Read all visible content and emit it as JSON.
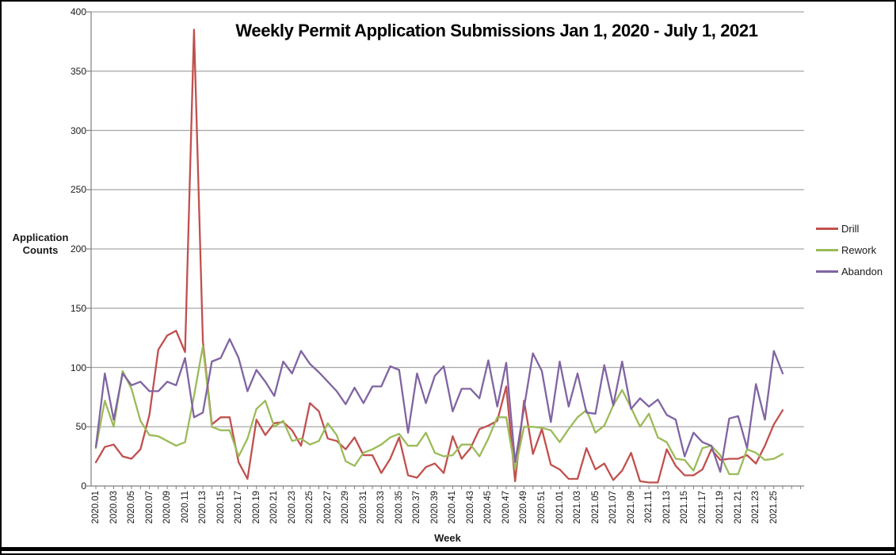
{
  "title": "Weekly Permit Application Submissions Jan 1, 2020 - July 1, 2021",
  "y_axis": {
    "label": "Application\nCounts",
    "tick_labels": [
      "0",
      "50",
      "100",
      "150",
      "200",
      "250",
      "300",
      "350",
      "400"
    ]
  },
  "x_axis": {
    "label": "Week"
  },
  "legend": {
    "items": [
      {
        "label": "Drill",
        "color": "#C0504D"
      },
      {
        "label": "Rework",
        "color": "#9BBB59"
      },
      {
        "label": "Abandon",
        "color": "#8064A2"
      }
    ]
  },
  "chart_data": {
    "type": "line",
    "title": "Weekly Permit Application Submissions Jan 1, 2020 - July 1, 2021",
    "xlabel": "Week",
    "ylabel": "Application Counts",
    "ylim": [
      0,
      400
    ],
    "ytick_step": 50,
    "grid": "horizontal",
    "legend_position": "right",
    "x_labels_every": 2,
    "categories": [
      "2020.01",
      "2020.02",
      "2020.03",
      "2020.04",
      "2020.05",
      "2020.06",
      "2020.07",
      "2020.08",
      "2020.09",
      "2020.10",
      "2020.11",
      "2020.12",
      "2020.13",
      "2020.14",
      "2020.15",
      "2020.16",
      "2020.17",
      "2020.18",
      "2020.19",
      "2020.20",
      "2020.21",
      "2020.22",
      "2020.23",
      "2020.24",
      "2020.25",
      "2020.26",
      "2020.27",
      "2020.28",
      "2020.29",
      "2020.30",
      "2020.31",
      "2020.32",
      "2020.33",
      "2020.34",
      "2020.35",
      "2020.36",
      "2020.37",
      "2020.38",
      "2020.39",
      "2020.40",
      "2020.41",
      "2020.42",
      "2020.43",
      "2020.44",
      "2020.45",
      "2020.46",
      "2020.47",
      "2020.48",
      "2020.49",
      "2020.50",
      "2020.51",
      "2020.52",
      "2021.01",
      "2021.02",
      "2021.03",
      "2021.04",
      "2021.05",
      "2021.06",
      "2021.07",
      "2021.08",
      "2021.09",
      "2021.10",
      "2021.11",
      "2021.12",
      "2021.13",
      "2021.14",
      "2021.15",
      "2021.16",
      "2021.17",
      "2021.18",
      "2021.19",
      "2021.20",
      "2021.21",
      "2021.22",
      "2021.23",
      "2021.24",
      "2021.25",
      "2021.26"
    ],
    "series": [
      {
        "name": "Drill",
        "color": "#C0504D",
        "values": [
          20,
          33,
          35,
          25,
          23,
          31,
          60,
          115,
          127,
          131,
          113,
          385,
          122,
          52,
          58,
          58,
          20,
          6,
          56,
          43,
          53,
          54,
          47,
          34,
          70,
          63,
          40,
          38,
          31,
          41,
          26,
          26,
          11,
          23,
          41,
          9,
          7,
          16,
          19,
          11,
          42,
          23,
          32,
          48,
          51,
          55,
          84,
          4,
          72,
          27,
          48,
          18,
          14,
          6,
          6,
          32,
          14,
          19,
          5,
          13,
          28,
          4,
          3,
          3,
          31,
          17,
          9,
          9,
          14,
          31,
          22,
          23,
          23,
          26,
          19,
          34,
          52,
          64
        ]
      },
      {
        "name": "Rework",
        "color": "#9BBB59",
        "values": [
          32,
          72,
          50,
          97,
          82,
          55,
          43,
          42,
          38,
          34,
          37,
          76,
          118,
          50,
          47,
          47,
          25,
          40,
          65,
          72,
          50,
          55,
          38,
          40,
          35,
          38,
          53,
          43,
          21,
          17,
          28,
          31,
          35,
          41,
          44,
          34,
          34,
          45,
          28,
          25,
          26,
          35,
          35,
          25,
          40,
          58,
          58,
          14,
          50,
          50,
          49,
          47,
          37,
          48,
          58,
          64,
          45,
          51,
          68,
          81,
          66,
          50,
          61,
          41,
          37,
          23,
          22,
          13,
          32,
          34,
          26,
          10,
          10,
          31,
          28,
          22,
          23,
          27
        ]
      },
      {
        "name": "Abandon",
        "color": "#8064A2",
        "values": [
          33,
          95,
          56,
          95,
          85,
          88,
          80,
          80,
          88,
          85,
          108,
          58,
          62,
          105,
          108,
          124,
          108,
          80,
          98,
          88,
          76,
          105,
          95,
          114,
          103,
          96,
          88,
          80,
          69,
          83,
          70,
          84,
          84,
          101,
          98,
          45,
          95,
          70,
          93,
          101,
          63,
          82,
          82,
          74,
          106,
          67,
          104,
          20,
          66,
          112,
          97,
          54,
          105,
          67,
          95,
          62,
          61,
          102,
          68,
          105,
          65,
          74,
          67,
          73,
          60,
          56,
          25,
          45,
          37,
          34,
          12,
          57,
          59,
          32,
          86,
          56,
          114,
          95
        ]
      }
    ]
  }
}
